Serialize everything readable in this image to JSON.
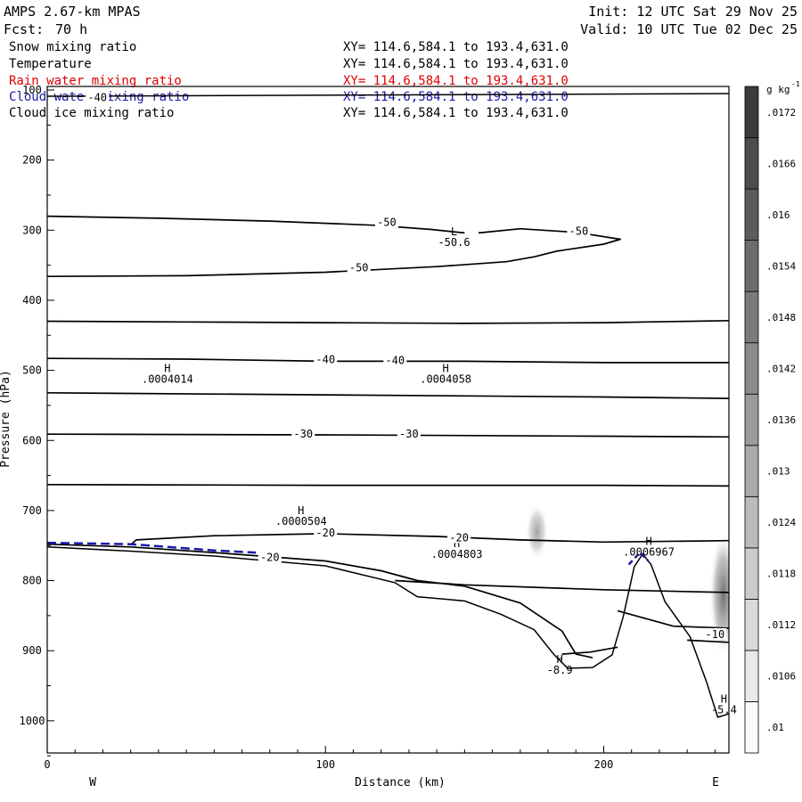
{
  "header": {
    "title": "AMPS 2.67-km MPAS",
    "fcst_label": "Fcst:",
    "fcst_value": "70 h",
    "init": "Init: 12 UTC Sat 29 Nov 25",
    "valid": "Valid: 10 UTC Tue 02 Dec 25"
  },
  "fields": [
    {
      "name": "Snow mixing ratio",
      "range": "XY= 114.6,584.1 to 193.4,631.0",
      "color": "#000000"
    },
    {
      "name": "Temperature",
      "range": "XY= 114.6,584.1 to 193.4,631.0",
      "color": "#000000"
    },
    {
      "name": "Rain water mixing ratio",
      "range": "XY= 114.6,584.1 to 193.4,631.0",
      "color": "#dd0000"
    },
    {
      "name": "Cloud water mixing ratio",
      "range": "XY= 114.6,584.1 to 193.4,631.0",
      "color": "#1a1aa8"
    },
    {
      "name": "Cloud ice mixing ratio",
      "range": "XY= 114.6,584.1 to 193.4,631.0",
      "color": "#000000"
    }
  ],
  "chart_data": {
    "type": "cross-section contour",
    "xlabel": "Distance (km)",
    "ylabel": "Pressure (hPa)",
    "xlim": [
      0,
      245
    ],
    "ylim": [
      1050,
      100
    ],
    "x_ticks": [
      0,
      100,
      200
    ],
    "y_ticks": [
      100,
      200,
      300,
      400,
      500,
      600,
      700,
      800,
      900,
      1000
    ],
    "west_label": "W",
    "east_label": "E",
    "colorbar": {
      "unit_label": "g kg",
      "unit_exponent": "-1",
      "ticks": [
        ".01",
        ".0106",
        ".0112",
        ".0118",
        ".0124",
        ".013",
        ".0136",
        ".0142",
        ".0148",
        ".0154",
        ".016",
        ".0166",
        ".0172"
      ]
    },
    "temperature_contours": [
      {
        "level": -50,
        "points": [
          [
            0,
            280
          ],
          [
            40,
            283
          ],
          [
            80,
            287
          ],
          [
            118,
            293
          ],
          [
            138,
            299
          ],
          [
            150,
            304
          ]
        ]
      },
      {
        "level": -50,
        "points": [
          [
            0,
            366
          ],
          [
            50,
            365
          ],
          [
            100,
            360
          ],
          [
            140,
            352
          ],
          [
            165,
            345
          ],
          [
            175,
            338
          ],
          [
            183,
            330
          ],
          [
            200,
            320
          ],
          [
            206,
            313
          ],
          [
            190,
            303
          ],
          [
            170,
            298
          ],
          [
            155,
            304
          ]
        ]
      },
      {
        "level": -40,
        "points": [
          [
            0,
            430
          ],
          [
            50,
            431
          ],
          [
            100,
            432
          ],
          [
            150,
            433
          ],
          [
            200,
            432
          ],
          [
            245,
            429
          ]
        ]
      },
      {
        "level": -40,
        "points": [
          [
            0,
            483
          ],
          [
            50,
            484
          ],
          [
            100,
            487
          ],
          [
            150,
            487
          ],
          [
            200,
            489
          ],
          [
            245,
            489
          ]
        ]
      },
      {
        "level": -30,
        "points": [
          [
            0,
            532
          ],
          [
            100,
            535
          ],
          [
            200,
            538
          ],
          [
            245,
            540
          ]
        ]
      },
      {
        "level": -30,
        "points": [
          [
            0,
            591
          ],
          [
            100,
            592
          ],
          [
            200,
            594
          ],
          [
            245,
            595
          ]
        ]
      },
      {
        "level": -30,
        "points": [
          [
            0,
            663
          ],
          [
            100,
            664
          ],
          [
            200,
            664
          ],
          [
            245,
            665
          ]
        ]
      },
      {
        "level": -20,
        "points": [
          [
            30,
            749
          ],
          [
            32,
            742
          ],
          [
            60,
            736
          ],
          [
            100,
            733
          ],
          [
            140,
            737
          ],
          [
            170,
            742
          ],
          [
            200,
            745
          ],
          [
            245,
            743
          ]
        ]
      },
      {
        "level": -20,
        "points": [
          [
            0,
            748
          ],
          [
            30,
            752
          ],
          [
            60,
            760
          ],
          [
            100,
            772
          ],
          [
            120,
            786
          ],
          [
            133,
            800
          ],
          [
            150,
            808
          ],
          [
            170,
            832
          ],
          [
            185,
            872
          ],
          [
            190,
            905
          ],
          [
            196,
            910
          ]
        ]
      },
      {
        "level": -20,
        "points": [
          [
            125,
            800
          ],
          [
            150,
            806
          ],
          [
            200,
            813
          ],
          [
            245,
            817
          ]
        ]
      },
      {
        "level": -10,
        "points": [
          [
            205,
            843
          ],
          [
            225,
            865
          ],
          [
            245,
            868
          ]
        ]
      },
      {
        "level": -10,
        "points": [
          [
            230,
            885
          ],
          [
            245,
            888
          ]
        ]
      },
      {
        "level": -10,
        "points": [
          [
            185,
            905
          ],
          [
            195,
            902
          ],
          [
            205,
            895
          ]
        ]
      }
    ],
    "terrain": [
      [
        0,
        752
      ],
      [
        30,
        758
      ],
      [
        60,
        765
      ],
      [
        100,
        779
      ],
      [
        125,
        803
      ],
      [
        133,
        823
      ],
      [
        150,
        829
      ],
      [
        163,
        848
      ],
      [
        175,
        870
      ],
      [
        182,
        905
      ],
      [
        187,
        925
      ],
      [
        196,
        924
      ],
      [
        203,
        906
      ],
      [
        207,
        852
      ],
      [
        211,
        780
      ],
      [
        214,
        762
      ],
      [
        217,
        777
      ],
      [
        222,
        830
      ],
      [
        231,
        880
      ],
      [
        237,
        945
      ],
      [
        241,
        995
      ],
      [
        245,
        990
      ]
    ],
    "cloud_water_contour": [
      [
        0,
        746
      ],
      [
        30,
        748
      ],
      [
        60,
        757
      ],
      [
        75,
        760
      ]
    ],
    "cloud_water_peak": [
      [
        209,
        777
      ],
      [
        213,
        760
      ],
      [
        216,
        772
      ]
    ],
    "shaded_regions": [
      {
        "x": 176,
        "p": 730,
        "rx": 4,
        "ry": 40,
        "intensity": 0.45
      },
      {
        "x": 243,
        "p": 820,
        "rx": 5,
        "ry": 90,
        "intensity": 0.7
      }
    ],
    "extrema": [
      {
        "mark": "H",
        "value": ".0004014",
        "x": 40,
        "p": 515
      },
      {
        "mark": "H",
        "value": ".0004058",
        "x": 140,
        "p": 515
      },
      {
        "mark": "H",
        "value": ".0000504",
        "x": 88,
        "p": 718
      },
      {
        "mark": "H",
        "value": ".0004803",
        "x": 144,
        "p": 765
      },
      {
        "mark": "H",
        "value": ".0006967",
        "x": 213,
        "p": 762
      },
      {
        "mark": "L",
        "value": "-50.6",
        "x": 143,
        "p": 320
      },
      {
        "mark": "H",
        "value": "-8.9",
        "x": 181,
        "p": 930
      },
      {
        "mark": "H",
        "value": "-5.4",
        "x": 240,
        "p": 987
      }
    ],
    "contour_labels": [
      {
        "text": "-40",
        "x": 18,
        "p": 112
      },
      {
        "text": "-50",
        "x": 122,
        "p": 290
      },
      {
        "text": "-50",
        "x": 191,
        "p": 303
      },
      {
        "text": "-50",
        "x": 112,
        "p": 355
      },
      {
        "text": "-40",
        "x": 100,
        "p": 486
      },
      {
        "text": "-40",
        "x": 125,
        "p": 487
      },
      {
        "text": "-30",
        "x": 92,
        "p": 592
      },
      {
        "text": "-30",
        "x": 130,
        "p": 592
      },
      {
        "text": "-20",
        "x": 100,
        "p": 733
      },
      {
        "text": "-20",
        "x": 148,
        "p": 740
      },
      {
        "text": "-20",
        "x": 80,
        "p": 768
      },
      {
        "text": "-10",
        "x": 240,
        "p": 878
      }
    ]
  }
}
